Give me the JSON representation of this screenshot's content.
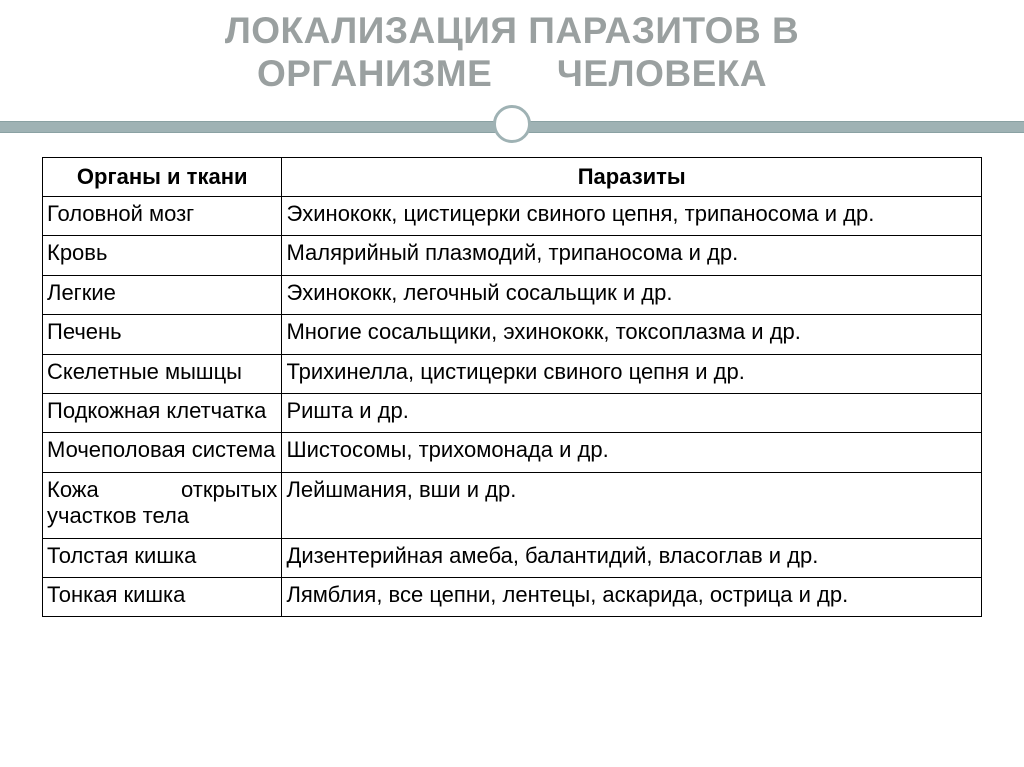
{
  "title": {
    "line1": "ЛОКАЛИЗАЦИЯ ПАРАЗИТОВ В",
    "line2": "ОРГАНИЗМЕ      ЧЕЛОВЕКА",
    "color": "#9aa0a0",
    "fontsize": 37
  },
  "divider": {
    "band_color": "#9fb2b4",
    "circle_border": "#9fb2b4",
    "circle_fill": "#ffffff"
  },
  "table": {
    "type": "table",
    "background_color": "#ffffff",
    "border_color": "#000000",
    "font_size": 22,
    "text_color": "#000000",
    "col_widths": [
      "25.5%",
      "74.5%"
    ],
    "columns": [
      "Органы и ткани",
      "Паразиты"
    ],
    "rows": [
      [
        "Головной мозг",
        "Эхинококк, цистицерки свиного цепня, трипаносома и др."
      ],
      [
        "Кровь",
        "Малярийный плазмодий, трипаносома и др."
      ],
      [
        "Легкие",
        "Эхинококк, легочный сосальщик и др."
      ],
      [
        "Печень",
        "Многие сосальщики, эхинококк, токсоплазма и др."
      ],
      [
        "Скелетные мышцы",
        "Трихинелла, цистицерки свиного цепня и др."
      ],
      [
        "Подкожная клетчатка",
        "Ришта и др."
      ],
      [
        "Мочеполовая система",
        "Шистосомы, трихомонада и др."
      ],
      [
        "Кожа открытых участков тела",
        "Лейшмания, вши  и др."
      ],
      [
        "Толстая кишка",
        "Дизентерийная амеба, балантидий, власоглав и др."
      ],
      [
        "Тонкая кишка",
        "Лямблия, все цепни, лентецы, аскарида, острица и др."
      ]
    ]
  }
}
